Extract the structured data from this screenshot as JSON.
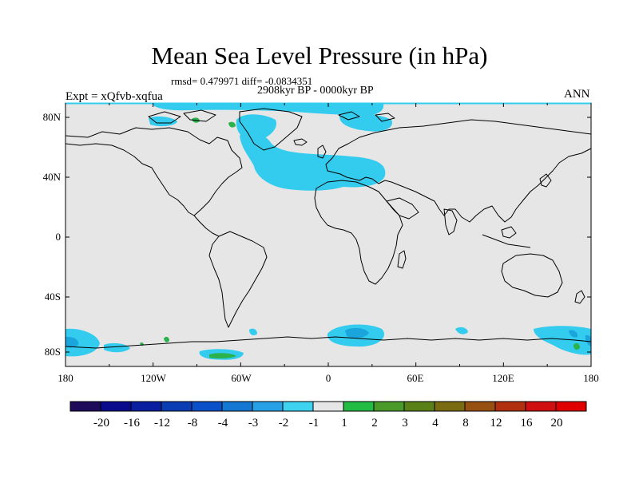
{
  "map": {
    "title": "Mean Sea Level Pressure (in hPa)",
    "stats": "rmsd= 0.479971 diff= -0.0834351",
    "period": "2908kyr BP - 0000kyr BP",
    "experiment": "Expt = xQfvb-xqfua",
    "season": "ANN",
    "lat_labels": [
      "80N",
      "40N",
      "0",
      "40S",
      "80S"
    ],
    "lon_labels": [
      "180",
      "120W",
      "60W",
      "0",
      "60E",
      "120E",
      "180"
    ],
    "background_color": "#e6e6e6",
    "coast_color": "#000000",
    "anomaly_color_main": "#33ccee",
    "anomaly_color_strong": "#1aa6dd",
    "anomaly_color_positive": "#2bb24a"
  },
  "colorbar": {
    "labels": [
      "-20",
      "-16",
      "-12",
      "-8",
      "-4",
      "-3",
      "-2",
      "-1",
      "1",
      "2",
      "3",
      "4",
      "8",
      "12",
      "16",
      "20"
    ],
    "colors": [
      "#1e0a5a",
      "#0a0a8c",
      "#0a1ea0",
      "#0a3cb4",
      "#0a50c8",
      "#1478d2",
      "#28a0e6",
      "#3cd2f0",
      "#e6e6e6",
      "#22bb44",
      "#4a9a2a",
      "#5a8018",
      "#7a6a10",
      "#985010",
      "#b03010",
      "#d01010",
      "#e00000"
    ]
  }
}
